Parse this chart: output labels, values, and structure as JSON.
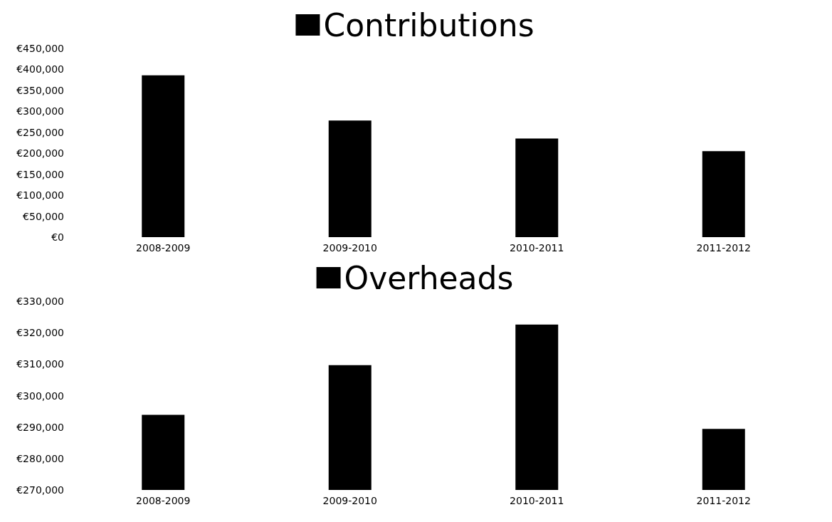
{
  "chart_data": [
    {
      "type": "bar",
      "categories": [
        "2008-2009",
        "2009-2010",
        "2010-2011",
        "2011-2012"
      ],
      "series": [
        {
          "name": "Contributions",
          "color": "#000000",
          "values": [
            386000,
            278000,
            235000,
            205000
          ]
        }
      ],
      "ylim": [
        0,
        450000
      ],
      "yticks": [
        {
          "value": 0,
          "label": "€0"
        },
        {
          "value": 50000,
          "label": "€50,000"
        },
        {
          "value": 100000,
          "label": "€100,000"
        },
        {
          "value": 150000,
          "label": "€150,000"
        },
        {
          "value": 200000,
          "label": "€200,000"
        },
        {
          "value": 250000,
          "label": "€250,000"
        },
        {
          "value": 300000,
          "label": "€300,000"
        },
        {
          "value": 350000,
          "label": "€350,000"
        },
        {
          "value": 400000,
          "label": "€400,000"
        },
        {
          "value": 450000,
          "label": "€450,000"
        }
      ],
      "grid": false,
      "legend": "top"
    },
    {
      "type": "bar",
      "categories": [
        "2008-2009",
        "2009-2010",
        "2010-2011",
        "2011-2012"
      ],
      "series": [
        {
          "name": "Overheads",
          "color": "#000000",
          "values": [
            293900,
            309700,
            322600,
            289400
          ]
        }
      ],
      "ylim": [
        270000,
        330000
      ],
      "yticks": [
        {
          "value": 270000,
          "label": "€270,000"
        },
        {
          "value": 280000,
          "label": "€280,000"
        },
        {
          "value": 290000,
          "label": "€290,000"
        },
        {
          "value": 300000,
          "label": "€300,000"
        },
        {
          "value": 310000,
          "label": "€310,000"
        },
        {
          "value": 320000,
          "label": "€320,000"
        },
        {
          "value": 330000,
          "label": "€330,000"
        }
      ],
      "grid": false,
      "legend": "top"
    }
  ]
}
